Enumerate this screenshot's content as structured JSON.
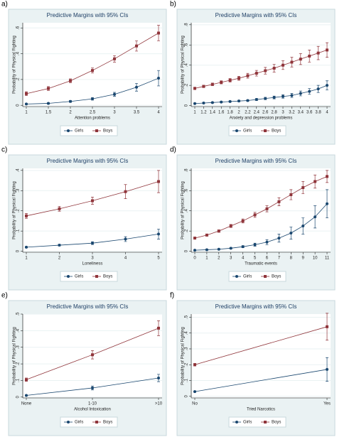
{
  "chart_data": [
    {
      "type": "line",
      "panel": "a)",
      "title": "Predictive Margins with 95% CIs",
      "xlabel": "Attention problems",
      "ylabel": "Probability of Physical Fighting",
      "x": [
        1,
        1.5,
        2,
        2.5,
        3,
        3.5,
        4
      ],
      "xlim": [
        1,
        4
      ],
      "xticks": [
        1,
        1.5,
        2,
        2.5,
        3,
        3.5,
        4
      ],
      "ylim": [
        -0.01,
        0.64
      ],
      "yticks": [
        0,
        {
          "value": 0.2,
          "label": ".2"
        },
        {
          "value": 0.4,
          "label": ".4"
        },
        {
          "value": 0.6,
          "label": ".6"
        }
      ],
      "series": [
        {
          "name": "Girls",
          "color": "#1a476f",
          "marker": "circle",
          "values": [
            0.01,
            0.015,
            0.03,
            0.05,
            0.085,
            0.14,
            0.21
          ],
          "errors": [
            0.004,
            0.005,
            0.007,
            0.01,
            0.015,
            0.03,
            0.06
          ]
        },
        {
          "name": "Boys",
          "color": "#90353b",
          "marker": "square",
          "values": [
            0.09,
            0.13,
            0.19,
            0.27,
            0.36,
            0.46,
            0.56
          ],
          "errors": [
            0.015,
            0.015,
            0.015,
            0.02,
            0.025,
            0.04,
            0.06
          ]
        }
      ]
    },
    {
      "type": "line",
      "panel": "b)",
      "title": "Predictive Margins with 95% CIs",
      "xlabel": "Anxiety and depression problems",
      "ylabel": "Probability of Physical Fighting",
      "x": [
        1,
        1.2,
        1.4,
        1.6,
        1.8,
        2,
        2.2,
        2.4,
        2.6,
        2.8,
        3,
        3.2,
        3.4,
        3.6,
        3.8,
        4
      ],
      "xlim": [
        1,
        4
      ],
      "xticks": [
        1,
        1.2,
        1.4,
        1.6,
        1.8,
        2,
        2.2,
        2.4,
        2.6,
        2.8,
        3,
        3.2,
        3.4,
        3.6,
        3.8,
        4
      ],
      "ylim": [
        -0.01,
        0.82
      ],
      "yticks": [
        0,
        {
          "value": 0.2,
          "label": ".2"
        },
        {
          "value": 0.4,
          "label": ".4"
        },
        {
          "value": 0.6,
          "label": ".6"
        },
        {
          "value": 0.8,
          "label": ".8"
        }
      ],
      "series": [
        {
          "name": "Girls",
          "color": "#1a476f",
          "marker": "circle",
          "values": [
            0.02,
            0.025,
            0.03,
            0.035,
            0.04,
            0.045,
            0.05,
            0.06,
            0.07,
            0.08,
            0.09,
            0.1,
            0.12,
            0.14,
            0.165,
            0.2
          ],
          "errors": [
            0.004,
            0.004,
            0.005,
            0.005,
            0.006,
            0.007,
            0.008,
            0.01,
            0.012,
            0.014,
            0.017,
            0.02,
            0.024,
            0.029,
            0.035,
            0.045
          ]
        },
        {
          "name": "Boys",
          "color": "#90353b",
          "marker": "square",
          "values": [
            0.17,
            0.19,
            0.21,
            0.23,
            0.25,
            0.27,
            0.295,
            0.32,
            0.345,
            0.37,
            0.4,
            0.43,
            0.46,
            0.49,
            0.52,
            0.55
          ],
          "errors": [
            0.012,
            0.012,
            0.013,
            0.015,
            0.017,
            0.02,
            0.024,
            0.028,
            0.033,
            0.038,
            0.043,
            0.048,
            0.054,
            0.06,
            0.066,
            0.072
          ]
        }
      ]
    },
    {
      "type": "line",
      "panel": "c)",
      "title": "Predictive Margins with 95% CIs",
      "xlabel": "Loneliness",
      "ylabel": "Probability of Physical Fighting",
      "x": [
        1,
        2,
        3,
        4,
        5
      ],
      "xlim": [
        1,
        5
      ],
      "xticks": [
        1,
        2,
        3,
        4,
        5
      ],
      "ylim": [
        -0.005,
        0.41
      ],
      "yticks": [
        0,
        {
          "value": 0.1,
          "label": ".1"
        },
        {
          "value": 0.2,
          "label": ".2"
        },
        {
          "value": 0.3,
          "label": ".3"
        },
        {
          "value": 0.4,
          "label": ".4"
        }
      ],
      "series": [
        {
          "name": "Girls",
          "color": "#1a476f",
          "marker": "circle",
          "values": [
            0.02,
            0.03,
            0.04,
            0.06,
            0.085
          ],
          "errors": [
            0.003,
            0.004,
            0.007,
            0.012,
            0.025
          ]
        },
        {
          "name": "Boys",
          "color": "#90353b",
          "marker": "square",
          "values": [
            0.175,
            0.21,
            0.25,
            0.295,
            0.345
          ],
          "errors": [
            0.012,
            0.012,
            0.018,
            0.035,
            0.055
          ]
        }
      ]
    },
    {
      "type": "line",
      "panel": "d)",
      "title": "Predictive Margins with 95% CIs",
      "xlabel": "Traumatic events",
      "ylabel": "Probability of Physical Fighting",
      "x": [
        0,
        1,
        2,
        3,
        4,
        5,
        6,
        7,
        8,
        9,
        10,
        11
      ],
      "xlim": [
        0,
        11
      ],
      "xticks": [
        0,
        1,
        2,
        3,
        4,
        5,
        6,
        7,
        8,
        9,
        10,
        11
      ],
      "ylim": [
        -0.01,
        0.82
      ],
      "yticks": [
        0,
        {
          "value": 0.2,
          "label": ".2"
        },
        {
          "value": 0.4,
          "label": ".4"
        },
        {
          "value": 0.6,
          "label": ".6"
        },
        {
          "value": 0.8,
          "label": ".8"
        }
      ],
      "series": [
        {
          "name": "Girls",
          "color": "#1a476f",
          "marker": "circle",
          "values": [
            0.01,
            0.015,
            0.02,
            0.03,
            0.045,
            0.065,
            0.09,
            0.13,
            0.18,
            0.25,
            0.34,
            0.47
          ],
          "errors": [
            0.003,
            0.003,
            0.004,
            0.006,
            0.01,
            0.015,
            0.025,
            0.04,
            0.06,
            0.08,
            0.11,
            0.14
          ]
        },
        {
          "name": "Boys",
          "color": "#90353b",
          "marker": "square",
          "values": [
            0.13,
            0.16,
            0.2,
            0.25,
            0.3,
            0.36,
            0.42,
            0.49,
            0.56,
            0.63,
            0.69,
            0.74
          ],
          "errors": [
            0.01,
            0.01,
            0.012,
            0.015,
            0.02,
            0.025,
            0.03,
            0.04,
            0.05,
            0.06,
            0.065,
            0.06
          ]
        }
      ]
    },
    {
      "type": "line",
      "panel": "e)",
      "title": "Predictive Margins with 95% CIs",
      "xlabel": "Alcohol Intoxication",
      "ylabel": "Probability of Physical Fighting",
      "categories": [
        "None",
        "1-10",
        ">10"
      ],
      "ylim": [
        -0.005,
        0.5
      ],
      "yticks": [
        0,
        {
          "value": 0.1,
          "label": ".1"
        },
        {
          "value": 0.2,
          "label": ".2"
        },
        {
          "value": 0.3,
          "label": ".3"
        },
        {
          "value": 0.4,
          "label": ".4"
        },
        {
          "value": 0.5,
          "label": ".5"
        }
      ],
      "series": [
        {
          "name": "Girls",
          "color": "#1a476f",
          "marker": "circle",
          "values": [
            0.01,
            0.055,
            0.115
          ],
          "errors": [
            0.003,
            0.012,
            0.022
          ]
        },
        {
          "name": "Boys",
          "color": "#90353b",
          "marker": "square",
          "values": [
            0.105,
            0.255,
            0.415
          ],
          "errors": [
            0.01,
            0.025,
            0.045
          ]
        }
      ]
    },
    {
      "type": "line",
      "panel": "f)",
      "title": "Predictive Margins with 95% CIs",
      "xlabel": "Tried Narcotics",
      "ylabel": "Probability of Physical Fighting",
      "categories": [
        "No",
        "Yes"
      ],
      "ylim": [
        -0.01,
        0.52
      ],
      "yticks": [
        0,
        {
          "value": 0.1,
          "label": ".1"
        },
        {
          "value": 0.2,
          "label": ".2"
        },
        {
          "value": 0.3,
          "label": ".3"
        },
        {
          "value": 0.4,
          "label": ".4"
        },
        {
          "value": 0.5,
          "label": ".5"
        }
      ],
      "series": [
        {
          "name": "Girls",
          "color": "#1a476f",
          "marker": "circle",
          "values": [
            0.03,
            0.17
          ],
          "errors": [
            0.003,
            0.075
          ]
        },
        {
          "name": "Boys",
          "color": "#90353b",
          "marker": "square",
          "values": [
            0.2,
            0.44
          ],
          "errors": [
            0.008,
            0.085
          ]
        }
      ]
    }
  ]
}
